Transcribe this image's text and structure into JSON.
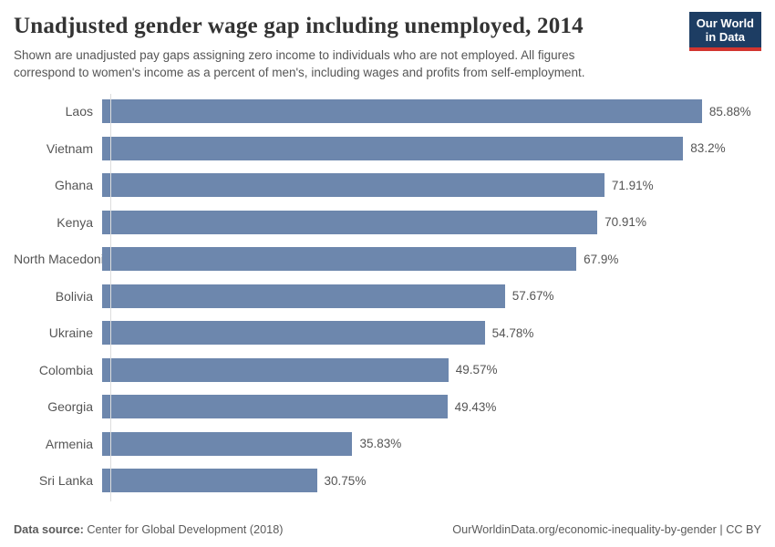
{
  "header": {
    "title": "Unadjusted gender wage gap including unemployed, 2014",
    "subtitle_lines": [
      "Shown are unadjusted pay gaps assigning zero income to individuals who are not employed. All figures",
      "correspond to women's income as a percent of men's, including wages and profits from self-employment."
    ],
    "logo": {
      "line1": "Our World",
      "line2": "in Data",
      "bg_color": "#1d3d63",
      "stripe_color": "#d2352f"
    }
  },
  "chart_data": {
    "type": "bar",
    "orientation": "horizontal",
    "title": "Unadjusted gender wage gap including unemployed, 2014",
    "xlabel": "",
    "ylabel": "",
    "xlim": [
      0,
      92
    ],
    "grid": false,
    "legend": false,
    "bar_color": "#6d87ad",
    "categories": [
      "Laos",
      "Vietnam",
      "Ghana",
      "Kenya",
      "North Macedonia",
      "Bolivia",
      "Ukraine",
      "Colombia",
      "Georgia",
      "Armenia",
      "Sri Lanka"
    ],
    "values": [
      85.88,
      83.2,
      71.91,
      70.91,
      67.9,
      57.67,
      54.78,
      49.57,
      49.43,
      35.83,
      30.75
    ],
    "value_labels": [
      "85.88%",
      "83.2%",
      "71.91%",
      "70.91%",
      "67.9%",
      "57.67%",
      "54.78%",
      "49.57%",
      "49.43%",
      "35.83%",
      "30.75%"
    ]
  },
  "footer": {
    "source_label": "Data source:",
    "source_text": " Center for Global Development (2018)",
    "link_text": "OurWorldinData.org/economic-inequality-by-gender | CC BY"
  }
}
